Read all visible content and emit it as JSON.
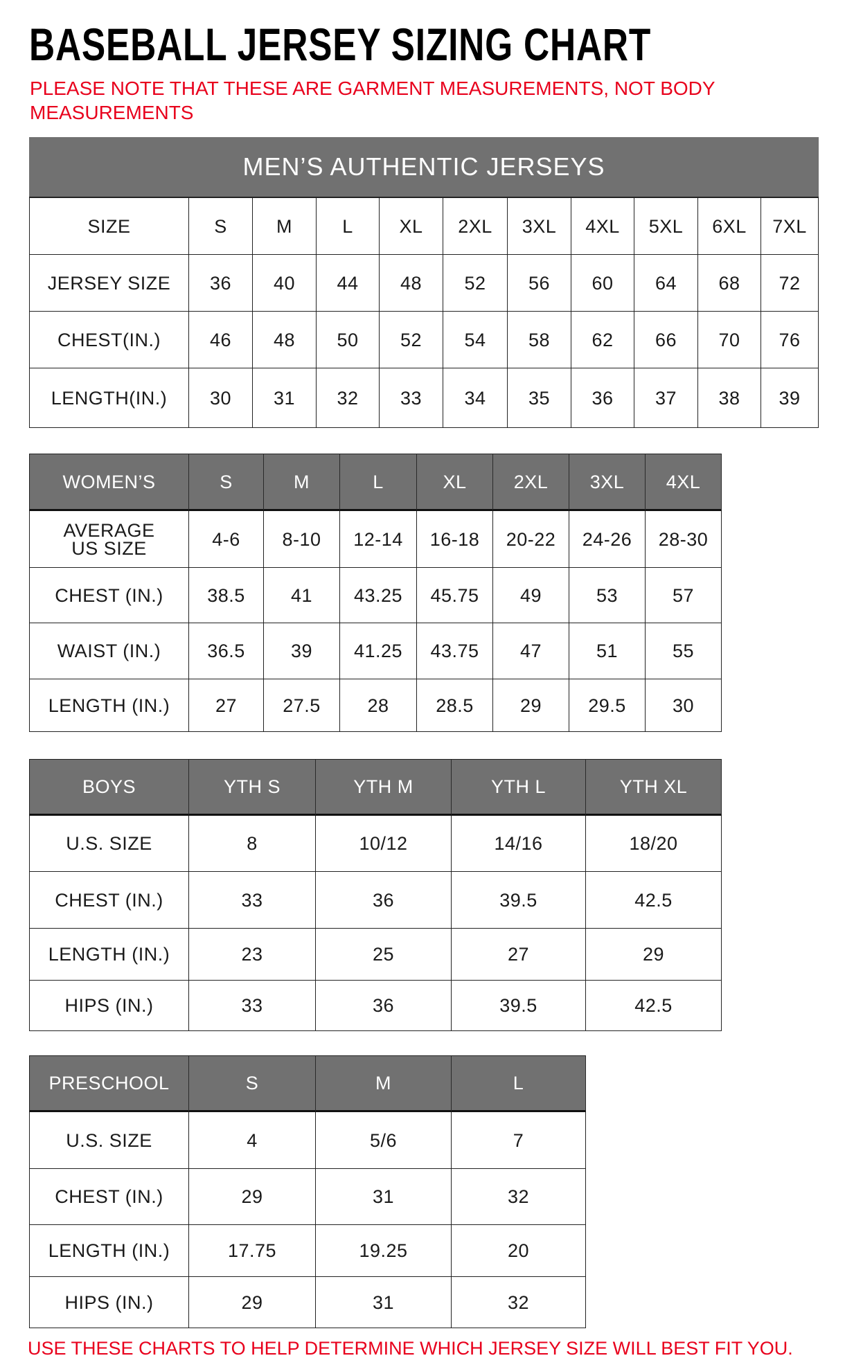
{
  "title": "BASEBALL JERSEY SIZING CHART",
  "note": "PLEASE NOTE THAT THESE ARE GARMENT MEASUREMENTS, NOT BODY MEASUREMENTS",
  "footer": "USE THESE CHARTS TO HELP DETERMINE WHICH JERSEY SIZE WILL BEST FIT YOU.",
  "colors": {
    "header_gray": "#717171",
    "note_red": "#e8001c",
    "border": "#222222"
  },
  "tables": [
    {
      "id": "mens",
      "banner": "MEN’S AUTHENTIC JERSEYS",
      "header": [
        "SIZE",
        "S",
        "M",
        "L",
        "XL",
        "2XL",
        "3XL",
        "4XL",
        "5XL",
        "6XL",
        "7XL"
      ],
      "header_style": "plain",
      "rows": [
        [
          "JERSEY SIZE",
          "36",
          "40",
          "44",
          "48",
          "52",
          "56",
          "60",
          "64",
          "68",
          "72"
        ],
        [
          "CHEST(IN.)",
          "46",
          "48",
          "50",
          "52",
          "54",
          "58",
          "62",
          "66",
          "70",
          "76"
        ],
        [
          "LENGTH(IN.)",
          "30",
          "31",
          "32",
          "33",
          "34",
          "35",
          "36",
          "37",
          "38",
          "39"
        ]
      ]
    },
    {
      "id": "womens",
      "header": [
        "WOMEN’S",
        "S",
        "M",
        "L",
        "XL",
        "2XL",
        "3XL",
        "4XL"
      ],
      "header_style": "gray",
      "rows": [
        [
          "AVERAGE US SIZE",
          "4-6",
          "8-10",
          "12-14",
          "16-18",
          "20-22",
          "24-26",
          "28-30"
        ],
        [
          "CHEST (IN.)",
          "38.5",
          "41",
          "43.25",
          "45.75",
          "49",
          "53",
          "57"
        ],
        [
          "WAIST (IN.)",
          "36.5",
          "39",
          "41.25",
          "43.75",
          "47",
          "51",
          "55"
        ],
        [
          "LENGTH (IN.)",
          "27",
          "27.5",
          "28",
          "28.5",
          "29",
          "29.5",
          "30"
        ]
      ]
    },
    {
      "id": "boys",
      "header": [
        "BOYS",
        "YTH S",
        "YTH M",
        "YTH L",
        "YTH XL"
      ],
      "header_style": "gray",
      "rows": [
        [
          "U.S. SIZE",
          "8",
          "10/12",
          "14/16",
          "18/20"
        ],
        [
          "CHEST (IN.)",
          "33",
          "36",
          "39.5",
          "42.5"
        ],
        [
          "LENGTH (IN.)",
          "23",
          "25",
          "27",
          "29"
        ],
        [
          "HIPS (IN.)",
          "33",
          "36",
          "39.5",
          "42.5"
        ]
      ]
    },
    {
      "id": "preschool",
      "header": [
        "PRESCHOOL",
        "S",
        "M",
        "L"
      ],
      "header_style": "gray",
      "rows": [
        [
          "U.S. SIZE",
          "4",
          "5/6",
          "7"
        ],
        [
          "CHEST (IN.)",
          "29",
          "31",
          "32"
        ],
        [
          "LENGTH (IN.)",
          "17.75",
          "19.25",
          "20"
        ],
        [
          "HIPS (IN.)",
          "29",
          "31",
          "32"
        ]
      ]
    }
  ]
}
